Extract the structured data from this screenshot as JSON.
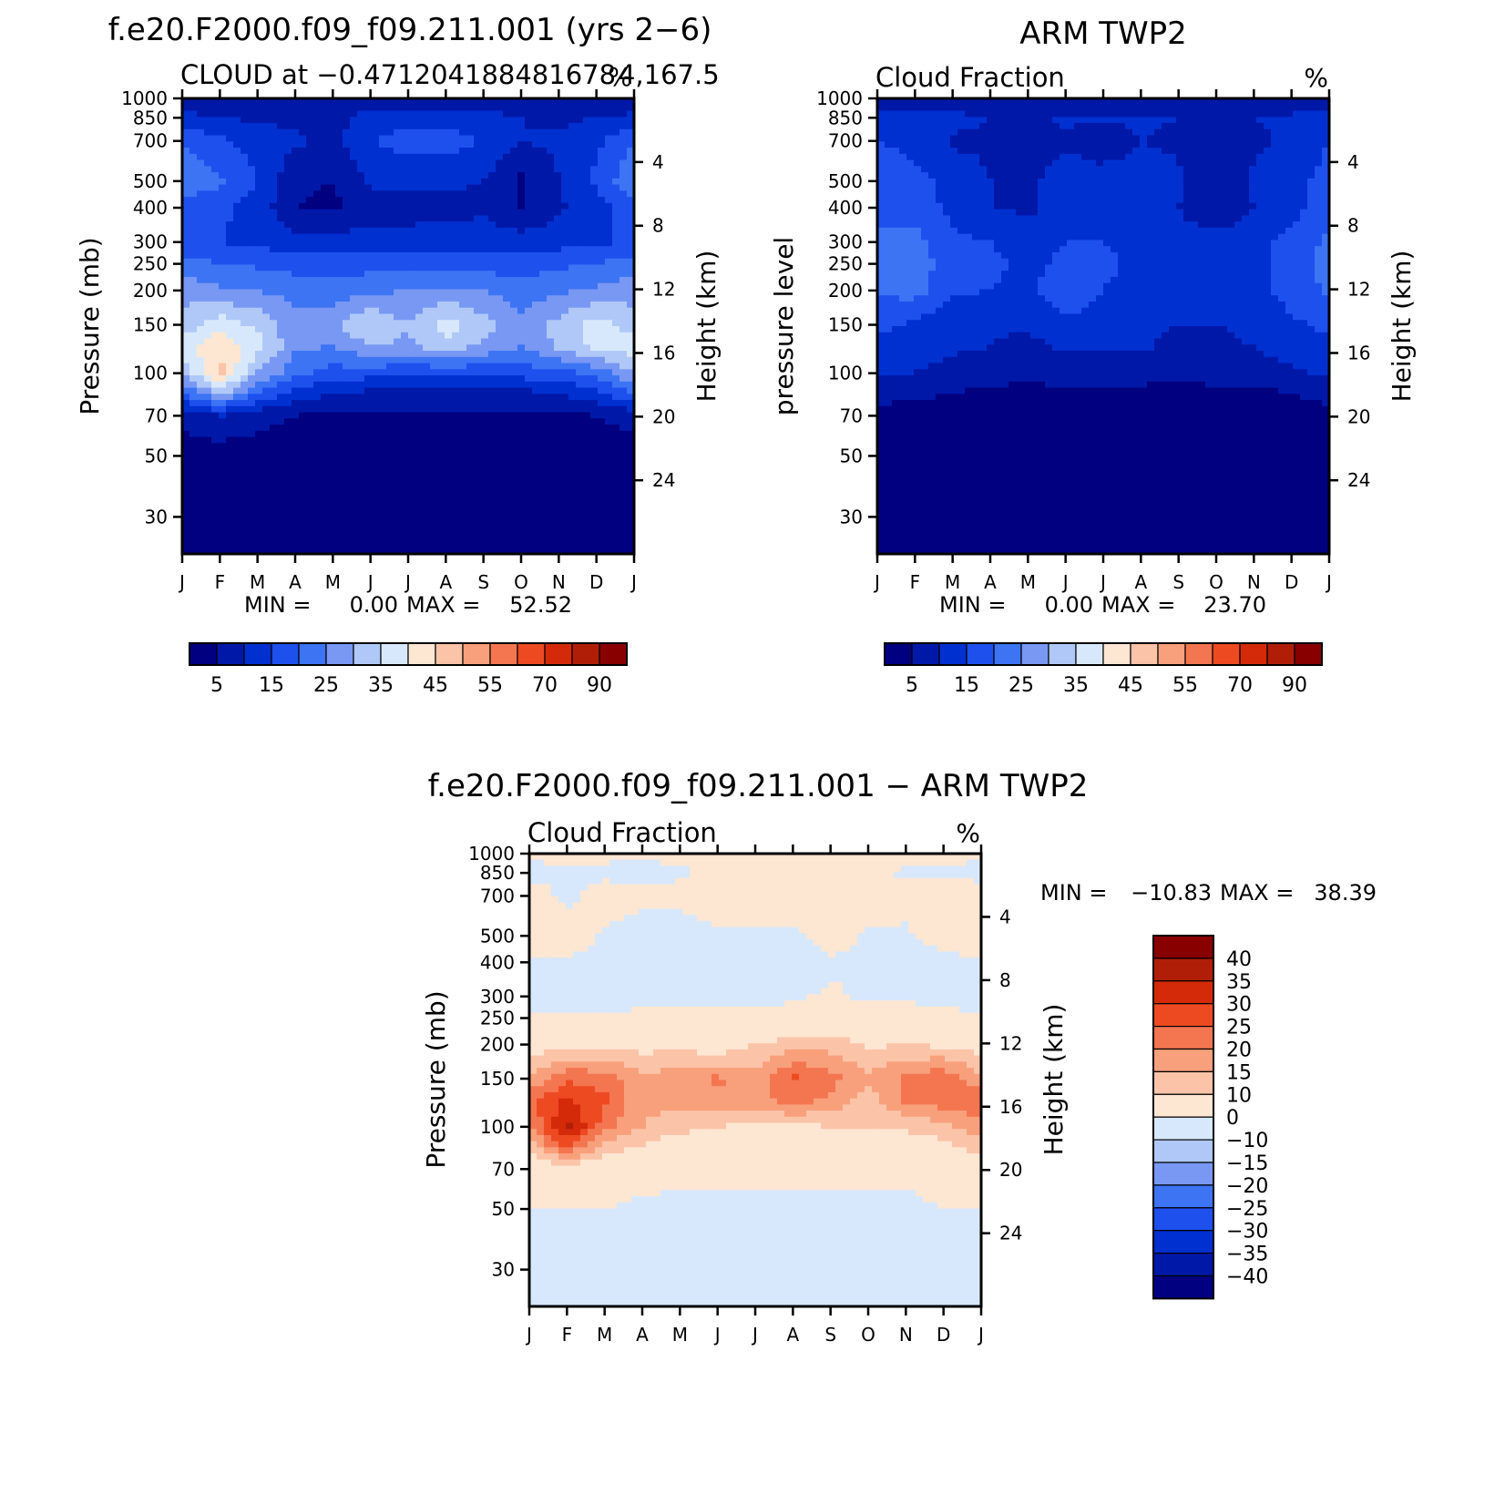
{
  "chart_data": [
    {
      "type": "heatmap",
      "title": "f.e20.F2000.f09_f09.211.001 (yrs 2−6)",
      "subtitle": "CLOUD at −0.471204188481678 4,167.5",
      "units": "%",
      "ylabel": "Pressure (mb)",
      "y2label": "Height (km)",
      "stats": {
        "min_label": "MIN =",
        "min": "0.00",
        "max_label": "MAX =",
        "max": "52.52"
      },
      "xticks": [
        "J",
        "F",
        "M",
        "A",
        "M",
        "J",
        "J",
        "A",
        "S",
        "O",
        "N",
        "D",
        "J"
      ],
      "yticks": [
        30,
        50,
        70,
        100,
        150,
        200,
        250,
        300,
        400,
        500,
        700,
        850,
        1000
      ],
      "y2ticks": [
        24,
        20,
        16,
        12,
        8,
        4
      ],
      "ylim": [
        1000,
        22
      ],
      "colorbar": {
        "orientation": "horizontal",
        "labels": [
          "5",
          "15",
          "25",
          "35",
          "45",
          "55",
          "70",
          "90"
        ]
      },
      "field": {
        "levels": [
          1000,
          850,
          700,
          500,
          400,
          300,
          250,
          200,
          150,
          125,
          100,
          85,
          70,
          50,
          30
        ],
        "months": [
          "J",
          "F",
          "M",
          "A",
          "M",
          "J",
          "J",
          "A",
          "S",
          "O",
          "N",
          "D",
          "J"
        ],
        "values": [
          [
            5,
            6,
            5,
            5,
            5,
            5,
            5,
            5,
            5,
            5,
            5,
            5,
            5
          ],
          [
            9,
            8,
            7,
            7,
            6,
            10,
            11,
            11,
            10,
            8,
            7,
            8,
            9
          ],
          [
            18,
            14,
            11,
            9,
            6,
            13,
            15,
            15,
            13,
            8,
            9,
            12,
            18
          ],
          [
            22,
            19,
            13,
            4,
            3,
            9,
            9,
            9,
            8,
            2,
            8,
            14,
            22
          ],
          [
            16,
            14,
            11,
            3,
            2,
            5,
            5,
            6,
            7,
            3,
            7,
            11,
            16
          ],
          [
            14,
            13,
            12,
            10,
            10,
            11,
            11,
            11,
            11,
            10,
            11,
            12,
            14
          ],
          [
            20,
            18,
            17,
            16,
            15,
            16,
            17,
            17,
            16,
            15,
            17,
            18,
            20
          ],
          [
            26,
            24,
            23,
            21,
            20,
            22,
            23,
            24,
            23,
            20,
            22,
            24,
            26
          ],
          [
            30,
            36,
            32,
            25,
            27,
            33,
            28,
            36,
            30,
            24,
            30,
            36,
            30
          ],
          [
            36,
            42,
            35,
            24,
            23,
            28,
            27,
            31,
            27,
            23,
            29,
            34,
            36
          ],
          [
            28,
            45,
            28,
            20,
            16,
            15,
            14,
            14,
            14,
            15,
            16,
            20,
            28
          ],
          [
            18,
            30,
            18,
            12,
            8,
            7,
            6,
            6,
            6,
            7,
            8,
            12,
            18
          ],
          [
            5,
            8,
            5,
            3,
            2,
            2,
            2,
            2,
            2,
            2,
            2,
            3,
            5
          ],
          [
            0,
            0,
            0,
            0,
            0,
            0,
            0,
            0,
            0,
            0,
            0,
            0,
            0
          ],
          [
            0,
            0,
            0,
            0,
            0,
            0,
            0,
            0,
            0,
            0,
            0,
            0,
            0
          ]
        ]
      }
    },
    {
      "type": "heatmap",
      "title": "ARM TWP2",
      "subtitle": "Cloud Fraction",
      "units": "%",
      "ylabel": "pressure level",
      "y2label": "Height (km)",
      "stats": {
        "min_label": "MIN =",
        "min": "0.00",
        "max_label": "MAX =",
        "max": "23.70"
      },
      "xticks": [
        "J",
        "F",
        "M",
        "A",
        "M",
        "J",
        "J",
        "A",
        "S",
        "O",
        "N",
        "D",
        "J"
      ],
      "yticks": [
        30,
        50,
        70,
        100,
        150,
        200,
        250,
        300,
        400,
        500,
        700,
        850,
        1000
      ],
      "y2ticks": [
        24,
        20,
        16,
        12,
        8,
        4
      ],
      "ylim": [
        1000,
        22
      ],
      "colorbar": {
        "orientation": "horizontal",
        "labels": [
          "5",
          "15",
          "25",
          "35",
          "45",
          "55",
          "70",
          "90"
        ]
      },
      "field": {
        "levels": [
          1000,
          850,
          700,
          500,
          400,
          300,
          250,
          200,
          150,
          125,
          100,
          85,
          70,
          50,
          30
        ],
        "months": [
          "J",
          "F",
          "M",
          "A",
          "M",
          "J",
          "J",
          "A",
          "S",
          "O",
          "N",
          "D",
          "J"
        ],
        "values": [
          [
            3,
            3,
            3,
            3,
            3,
            3,
            3,
            3,
            3,
            3,
            3,
            3,
            3
          ],
          [
            12,
            11,
            10,
            8,
            7,
            9,
            9,
            9,
            8,
            6,
            8,
            9,
            12
          ],
          [
            13,
            12,
            7,
            7,
            4,
            7,
            4,
            8,
            7,
            3,
            7,
            9,
            13
          ],
          [
            15,
            14,
            12,
            8,
            7,
            11,
            11,
            11,
            9,
            3,
            9,
            11,
            15
          ],
          [
            17,
            15,
            12,
            8,
            7,
            10,
            9,
            10,
            8,
            4,
            8,
            11,
            17
          ],
          [
            19,
            20,
            14,
            13,
            11,
            13,
            13,
            12,
            10,
            10,
            11,
            15,
            19
          ],
          [
            20,
            21,
            15,
            14,
            12,
            14,
            14,
            12,
            11,
            11,
            11,
            15,
            20
          ],
          [
            19,
            20,
            14,
            13,
            12,
            16,
            13,
            11,
            10,
            11,
            12,
            15,
            19
          ],
          [
            14,
            12,
            9,
            9,
            9,
            12,
            11,
            10,
            8,
            8,
            9,
            12,
            14
          ],
          [
            12,
            11,
            9,
            8,
            6,
            9,
            9,
            9,
            6,
            7,
            8,
            11,
            12
          ],
          [
            9,
            8,
            6,
            5,
            4,
            5,
            5,
            5,
            4,
            5,
            5,
            7,
            9
          ],
          [
            5,
            4,
            3,
            2,
            2,
            2,
            2,
            2,
            1,
            2,
            2,
            3,
            5
          ],
          [
            1,
            1,
            1,
            1,
            1,
            1,
            1,
            1,
            1,
            1,
            1,
            1,
            1
          ],
          [
            0,
            0,
            0,
            0,
            0,
            0,
            0,
            0,
            0,
            0,
            0,
            0,
            0
          ],
          [
            0,
            0,
            0,
            0,
            0,
            0,
            0,
            0,
            0,
            0,
            0,
            0,
            0
          ]
        ]
      }
    },
    {
      "type": "heatmap",
      "title": "f.e20.F2000.f09_f09.211.001 − ARM TWP2",
      "subtitle": "Cloud Fraction",
      "units": "%",
      "ylabel": "Pressure (mb)",
      "y2label": "Height (km)",
      "stats": {
        "min_label": "MIN =",
        "min": "−10.83",
        "max_label": "MAX =",
        "max": "38.39"
      },
      "xticks": [
        "J",
        "F",
        "M",
        "A",
        "M",
        "J",
        "J",
        "A",
        "S",
        "O",
        "N",
        "D",
        "J"
      ],
      "yticks": [
        30,
        50,
        70,
        100,
        150,
        200,
        250,
        300,
        400,
        500,
        700,
        850,
        1000
      ],
      "y2ticks": [
        24,
        20,
        16,
        12,
        8,
        4
      ],
      "ylim": [
        1000,
        22
      ],
      "colorbar": {
        "orientation": "vertical",
        "labels": [
          "40",
          "35",
          "30",
          "25",
          "20",
          "15",
          "10",
          "0",
          "−10",
          "−15",
          "−20",
          "−25",
          "−30",
          "−35",
          "−40"
        ]
      },
      "field": {
        "levels": [
          1000,
          850,
          700,
          500,
          400,
          300,
          250,
          200,
          150,
          125,
          100,
          85,
          70,
          50,
          30
        ],
        "months": [
          "J",
          "F",
          "M",
          "A",
          "M",
          "J",
          "J",
          "A",
          "S",
          "O",
          "N",
          "D",
          "J"
        ],
        "values": [
          [
            2,
            3,
            2,
            2,
            2,
            2,
            2,
            2,
            2,
            2,
            2,
            2,
            2
          ],
          [
            -3,
            -2,
            -2,
            -3,
            -1,
            1,
            2,
            2,
            2,
            2,
            -1,
            -1,
            -3
          ],
          [
            5,
            -2,
            4,
            2,
            2,
            6,
            11,
            7,
            6,
            5,
            2,
            3,
            5
          ],
          [
            7,
            5,
            -1,
            -4,
            -4,
            -2,
            -2,
            -2,
            3,
            -1,
            -1,
            3,
            7
          ],
          [
            -1,
            -1,
            -3,
            -5,
            -5,
            -8,
            -4,
            -4,
            -1,
            -1,
            -3,
            -3,
            -1
          ],
          [
            -5,
            -7,
            -2,
            -3,
            -2,
            -2,
            -2,
            -1,
            1,
            -1,
            -1,
            -3,
            -5
          ],
          [
            2,
            2,
            1,
            2,
            2,
            2,
            2,
            3,
            5,
            4,
            3,
            3,
            2
          ],
          [
            7,
            8,
            9,
            8,
            8,
            6,
            10,
            13,
            13,
            9,
            10,
            9,
            7
          ],
          [
            16,
            24,
            23,
            16,
            18,
            21,
            17,
            26,
            22,
            16,
            21,
            24,
            16
          ],
          [
            24,
            31,
            26,
            16,
            17,
            19,
            18,
            22,
            19,
            12,
            21,
            23,
            24
          ],
          [
            19,
            37,
            22,
            15,
            12,
            10,
            9,
            9,
            10,
            10,
            11,
            13,
            19
          ],
          [
            13,
            26,
            13,
            10,
            6,
            5,
            4,
            4,
            5,
            5,
            6,
            9,
            13
          ],
          [
            4,
            7,
            4,
            2,
            1,
            1,
            1,
            1,
            1,
            1,
            1,
            2,
            4
          ],
          [
            0,
            0,
            0,
            -1,
            -1,
            -1,
            -1,
            -1,
            -1,
            -1,
            -1,
            0,
            0
          ],
          [
            -1,
            -1,
            -1,
            -1,
            -1,
            -1,
            -1,
            -1,
            -1,
            -1,
            -1,
            -1,
            -1
          ]
        ]
      }
    }
  ],
  "palette": {
    "abs": [
      "#000080",
      "#0018a8",
      "#0030d0",
      "#1e50ee",
      "#3c74f4",
      "#7898f4",
      "#b0c8f8",
      "#d8e8fc",
      "#fde6d2",
      "#fbc4a8",
      "#f8a07c",
      "#f47650",
      "#ee4a22",
      "#d42a0a",
      "#b01e08",
      "#880000"
    ],
    "diff": [
      "#000080",
      "#0018a8",
      "#0030d0",
      "#1e50ee",
      "#3c74f4",
      "#7898f4",
      "#b0c8f8",
      "#d8e8fc",
      "#fde6d2",
      "#fbc4a8",
      "#f8a07c",
      "#f47650",
      "#ee4a22",
      "#d42a0a",
      "#b01e08",
      "#880000"
    ]
  }
}
